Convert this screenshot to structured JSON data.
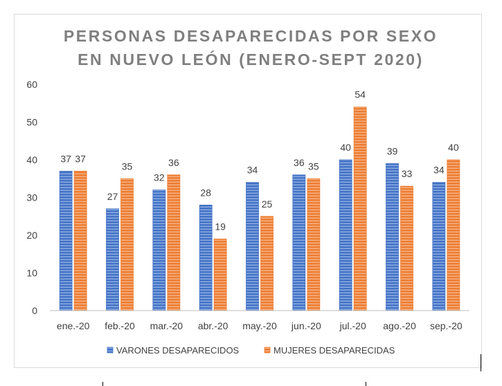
{
  "chart_data": {
    "type": "bar",
    "title": [
      "PERSONAS DESAPARECIDAS POR SEXO",
      "EN NUEVO LEÓN (ENERO-SEPT 2020)"
    ],
    "xlabel": "",
    "ylabel": "",
    "ylim": [
      0,
      60
    ],
    "yticks": [
      0,
      10,
      20,
      30,
      40,
      50,
      60
    ],
    "grid": false,
    "legend_position": "bottom",
    "categories": [
      "ene.-20",
      "feb.-20",
      "mar.-20",
      "abr.-20",
      "may.-20",
      "jun.-20",
      "jul.-20",
      "ago.-20",
      "sep.-20"
    ],
    "series": [
      {
        "name": "VARONES DESAPARECIDOS",
        "color": "#4472c4",
        "values": [
          37,
          27,
          32,
          28,
          34,
          36,
          40,
          39,
          34
        ]
      },
      {
        "name": "MUJERES DESAPARECIDAS",
        "color": "#ed7d31",
        "values": [
          37,
          35,
          36,
          19,
          25,
          35,
          54,
          33,
          40
        ]
      }
    ],
    "data_labels": true,
    "bar_pattern": "horizontal-stripes"
  }
}
